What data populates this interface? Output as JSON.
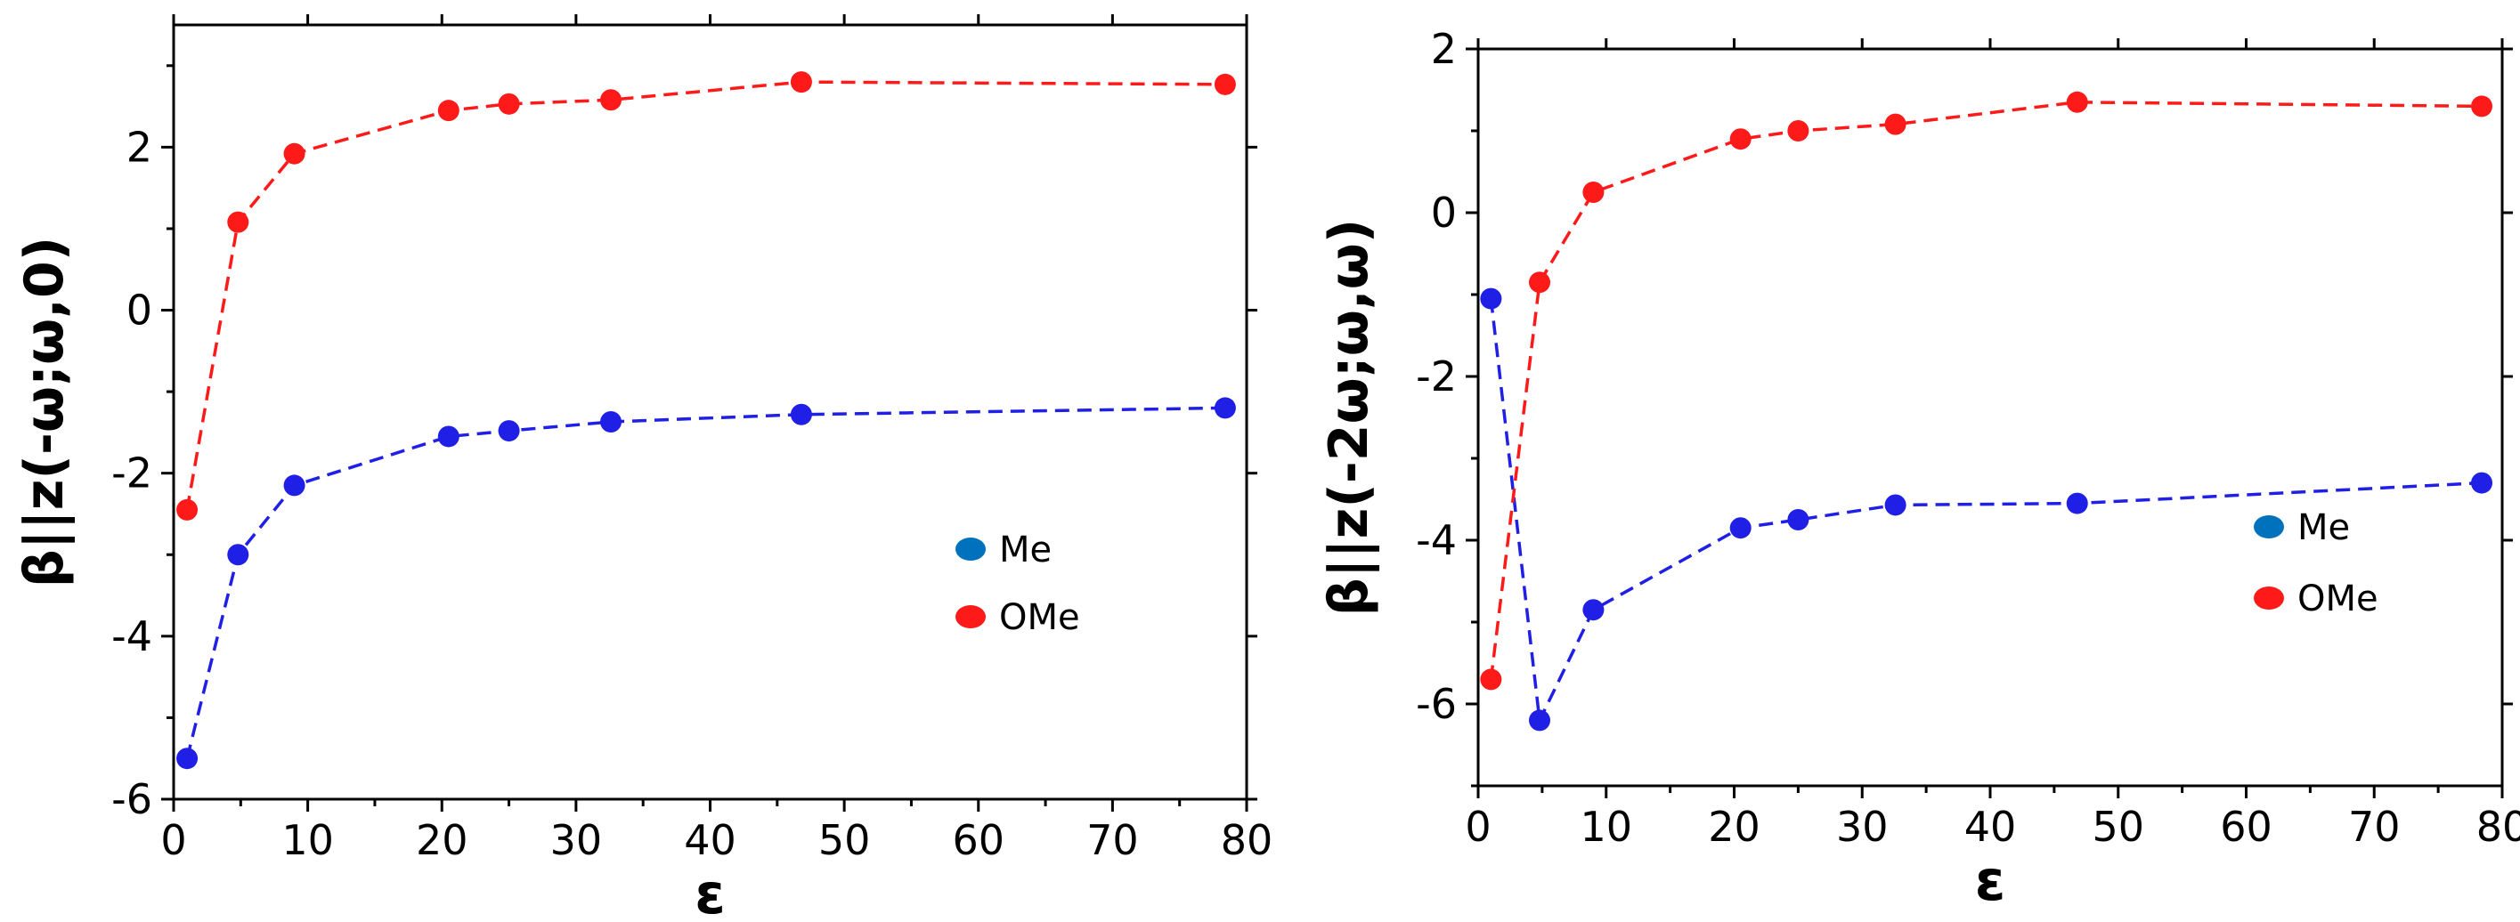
{
  "chart_data": [
    {
      "type": "line",
      "xlabel": "ε",
      "ylabel": "β||z(-ω;ω,0)",
      "xlim": [
        0,
        80
      ],
      "ylim": [
        -6,
        3.5
      ],
      "x_ticks": [
        0,
        10,
        20,
        30,
        40,
        50,
        60,
        70,
        80
      ],
      "y_ticks": [
        -6,
        -4,
        -2,
        0,
        2
      ],
      "grid": false,
      "legend_position": "right-middle",
      "series": [
        {
          "name": "Me",
          "marker_color": "#0072bd",
          "line_color": "#1f1fe6",
          "x": [
            1,
            4.8,
            9,
            20.5,
            25,
            32.6,
            46.8,
            78.4
          ],
          "y": [
            -5.5,
            -3.0,
            -2.15,
            -1.55,
            -1.48,
            -1.37,
            -1.28,
            -1.2
          ]
        },
        {
          "name": "OMe",
          "marker_color": "#ff1a1a",
          "line_color": "#ff1a1a",
          "x": [
            1,
            4.8,
            9,
            20.5,
            25,
            32.6,
            46.8,
            78.4
          ],
          "y": [
            -2.45,
            1.08,
            1.92,
            2.45,
            2.53,
            2.58,
            2.8,
            2.77
          ]
        }
      ]
    },
    {
      "type": "line",
      "xlabel": "ε",
      "ylabel": "β||z(-2ω;ω,ω)",
      "xlim": [
        0,
        80
      ],
      "ylim": [
        -7,
        2
      ],
      "x_ticks": [
        0,
        10,
        20,
        30,
        40,
        50,
        60,
        70,
        80
      ],
      "y_ticks": [
        -6,
        -4,
        -2,
        0,
        2
      ],
      "grid": false,
      "legend_position": "right-middle",
      "series": [
        {
          "name": "Me",
          "marker_color": "#0072bd",
          "line_color": "#1f1fe6",
          "x": [
            1,
            4.8,
            9,
            20.5,
            25,
            32.6,
            46.8,
            78.4
          ],
          "y": [
            -1.05,
            -6.2,
            -4.85,
            -3.85,
            -3.75,
            -3.57,
            -3.55,
            -3.3
          ]
        },
        {
          "name": "OMe",
          "marker_color": "#ff1a1a",
          "line_color": "#ff1a1a",
          "x": [
            1,
            4.8,
            9,
            20.5,
            25,
            32.6,
            46.8,
            78.4
          ],
          "y": [
            -5.7,
            -0.85,
            0.25,
            0.9,
            1.0,
            1.08,
            1.35,
            1.3
          ]
        }
      ]
    }
  ]
}
